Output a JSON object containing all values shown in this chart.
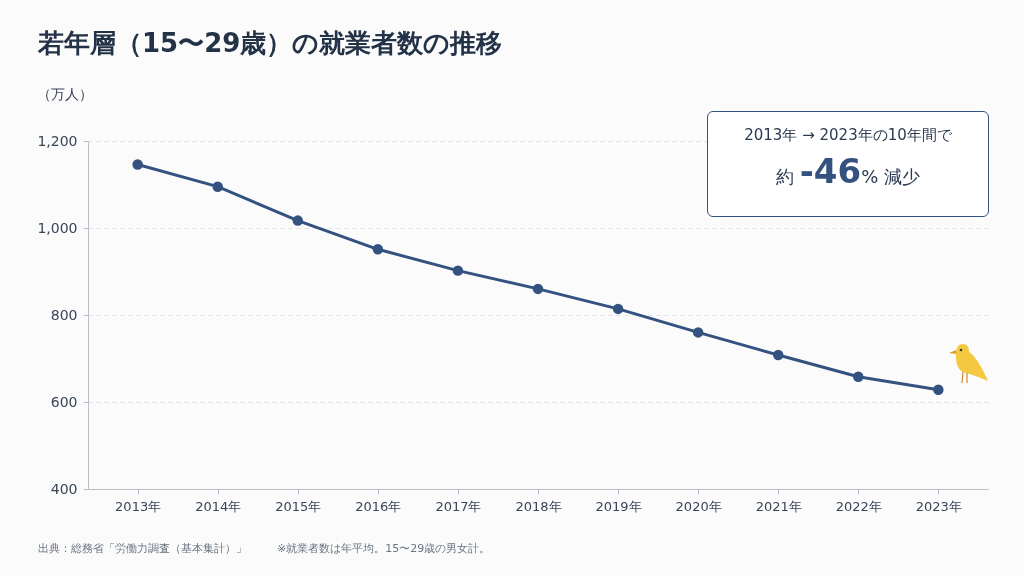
{
  "chart_data": {
    "type": "line",
    "title": "若年層（15〜29歳）の就業者数の推移",
    "ylabel": "（万人）",
    "categories": [
      "2013年",
      "2014年",
      "2015年",
      "2016年",
      "2017年",
      "2018年",
      "2019年",
      "2020年",
      "2021年",
      "2022年",
      "2023年"
    ],
    "series": [
      {
        "color": "#34527f",
        "values": [
          1146,
          1095,
          1017,
          951,
          902,
          860,
          814,
          760,
          708,
          658,
          628
        ]
      }
    ],
    "ylim": [
      400,
      1200
    ],
    "yticks": [
      400,
      600,
      800,
      {
        "value": 1000,
        "label": "1,000"
      },
      {
        "value": 1200,
        "label": "1,200"
      }
    ],
    "grid": "y",
    "marker": "circle",
    "line_style": "solid",
    "legend": false,
    "annotations": [
      "2013年 → 2023年の10年間で",
      "約 -46% 減少",
      "出典：総務省「労働力調査（基本集計）」",
      "※就業者数は年平均。15〜29歳の男女計。"
    ]
  }
}
